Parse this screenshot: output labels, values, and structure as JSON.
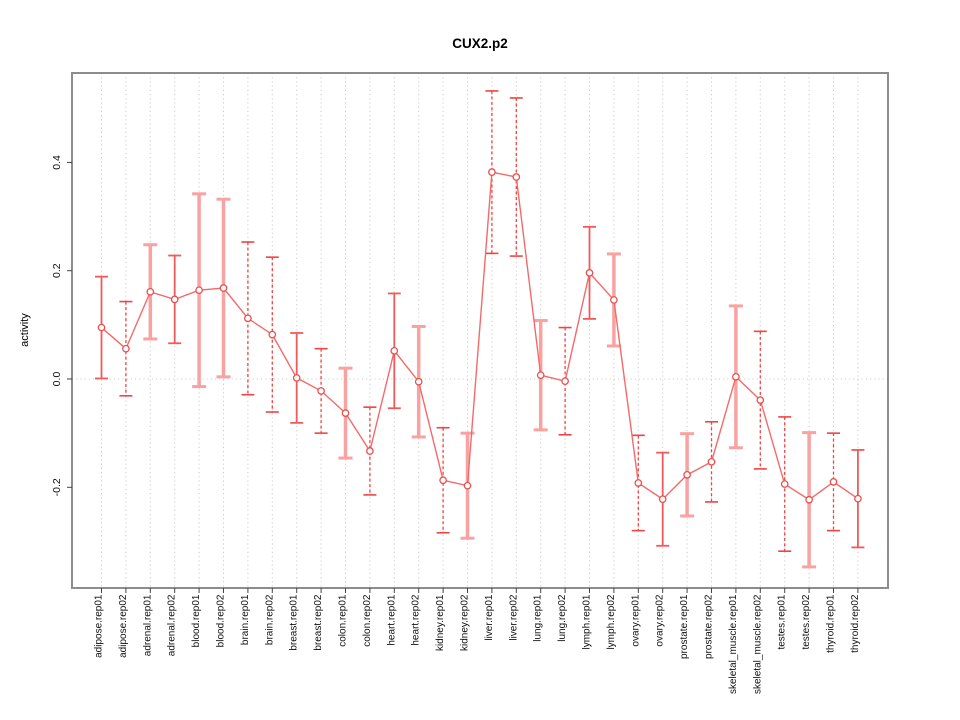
{
  "title": "CUX2.p2",
  "colors": {
    "background": "#ffffff",
    "plot_border": "#8c8c8c",
    "grid": "#cccccc",
    "tick": "#444444",
    "label_text": "#111111",
    "series_line": "#f46a6a",
    "marker_stroke": "#e94f4f",
    "marker_fill": "#ffffff",
    "errorbar_solid": "#f15a5a",
    "errorbar_dashed": "#ee4444",
    "errorbar_thick": "#f8a2a2"
  },
  "chart_data": {
    "type": "line",
    "title": "CUX2.p2",
    "xlabel": "",
    "ylabel": "activity",
    "ylim": [
      -0.386,
      0.565
    ],
    "yticks": [
      -0.2,
      0.0,
      0.2,
      0.4
    ],
    "ytick_labels": [
      "-0.2",
      "0.0",
      "0.2",
      "0.4"
    ],
    "legend": "none",
    "grid": "vertical dotted per category, horizontal dotted at 0",
    "marker": "open-circle",
    "categories": [
      "adipose.rep01",
      "adipose.rep02",
      "adrenal.rep01",
      "adrenal.rep02",
      "blood.rep01",
      "blood.rep02",
      "brain.rep01",
      "brain.rep02",
      "breast.rep01",
      "breast.rep02",
      "colon.rep01",
      "colon.rep02",
      "heart.rep01",
      "heart.rep02",
      "kidney.rep01",
      "kidney.rep02",
      "liver.rep01",
      "liver.rep02",
      "lung.rep01",
      "lung.rep02",
      "lymph.rep01",
      "lymph.rep02",
      "ovary.rep01",
      "ovary.rep02",
      "prostate.rep01",
      "prostate.rep02",
      "skeletal_muscle.rep01",
      "skeletal_muscle.rep02",
      "testes.rep01",
      "testes.rep02",
      "thyroid.rep01",
      "thyroid.rep02"
    ],
    "series": [
      {
        "name": "activity",
        "values": [
          0.095,
          0.056,
          0.161,
          0.147,
          0.164,
          0.168,
          0.112,
          0.082,
          0.002,
          -0.022,
          -0.063,
          -0.133,
          0.052,
          -0.005,
          -0.187,
          -0.197,
          0.382,
          0.373,
          0.007,
          -0.004,
          0.196,
          0.146,
          -0.192,
          -0.222,
          -0.177,
          -0.153,
          0.004,
          -0.039,
          -0.194,
          -0.223,
          -0.19,
          -0.221
        ]
      }
    ],
    "error_low": [
      0.001,
      -0.031,
      0.074,
      0.066,
      -0.014,
      0.004,
      -0.029,
      -0.061,
      -0.081,
      -0.1,
      -0.146,
      -0.214,
      -0.054,
      -0.107,
      -0.284,
      -0.294,
      0.232,
      0.227,
      -0.094,
      -0.103,
      0.111,
      0.061,
      -0.28,
      -0.308,
      -0.253,
      -0.227,
      -0.127,
      -0.166,
      -0.318,
      -0.347,
      -0.28,
      -0.311
    ],
    "error_high": [
      0.189,
      0.143,
      0.248,
      0.228,
      0.342,
      0.332,
      0.253,
      0.225,
      0.085,
      0.056,
      0.02,
      -0.052,
      0.158,
      0.097,
      -0.09,
      -0.1,
      0.532,
      0.519,
      0.108,
      0.095,
      0.281,
      0.231,
      -0.104,
      -0.136,
      -0.101,
      -0.079,
      0.135,
      0.088,
      -0.07,
      -0.099,
      -0.1,
      -0.131
    ],
    "bar_styles": [
      "solid",
      "dashed",
      "thick",
      "solid",
      "thick",
      "thick",
      "dashed",
      "dashed",
      "solid",
      "dashed",
      "thick",
      "dashed",
      "solid",
      "thick",
      "dashed",
      "thick",
      "dashed",
      "dashed",
      "thick",
      "dashed",
      "solid",
      "thick",
      "dashed",
      "solid",
      "thick",
      "dashed",
      "thick",
      "dashed",
      "dashed",
      "thick",
      "dashed",
      "solid"
    ]
  }
}
